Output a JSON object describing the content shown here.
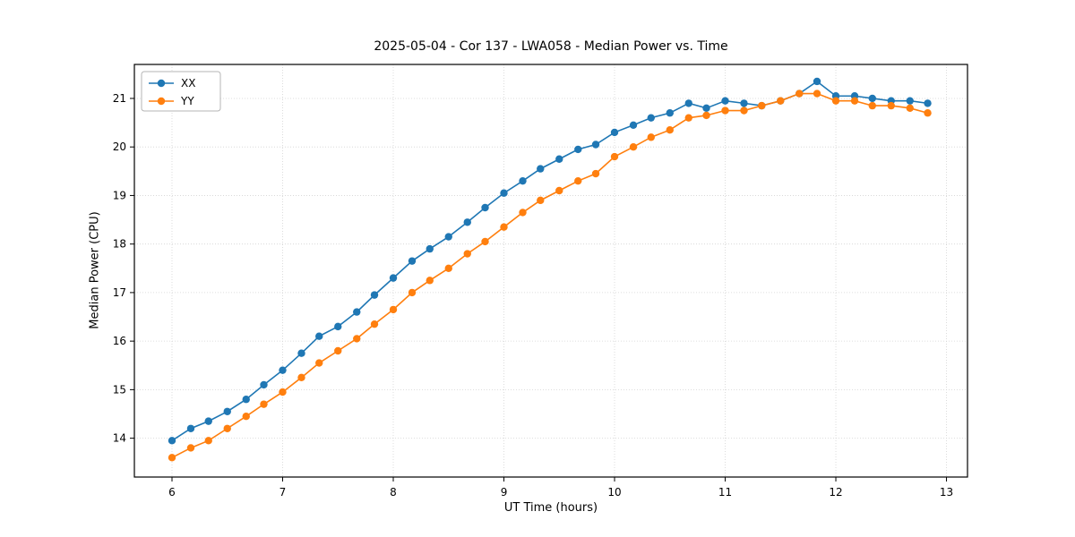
{
  "chart_data": {
    "type": "line",
    "title": "2025-05-04 - Cor 137 - LWA058 - Median Power vs. Time",
    "xlabel": "UT Time (hours)",
    "ylabel": "Median Power (CPU)",
    "xlim": [
      5.66,
      13.19
    ],
    "ylim": [
      13.2,
      21.7
    ],
    "xticks": [
      6,
      7,
      8,
      9,
      10,
      11,
      12,
      13
    ],
    "yticks": [
      14,
      15,
      16,
      17,
      18,
      19,
      20,
      21
    ],
    "grid": true,
    "legend_position": "upper left",
    "marker": "circle",
    "x": [
      6.0,
      6.17,
      6.33,
      6.5,
      6.67,
      6.83,
      7.0,
      7.17,
      7.33,
      7.5,
      7.67,
      7.83,
      8.0,
      8.17,
      8.33,
      8.5,
      8.67,
      8.83,
      9.0,
      9.17,
      9.33,
      9.5,
      9.67,
      9.83,
      10.0,
      10.17,
      10.33,
      10.5,
      10.67,
      10.83,
      11.0,
      11.17,
      11.33,
      11.5,
      11.67,
      11.83,
      12.0,
      12.17,
      12.33,
      12.5,
      12.67,
      12.83
    ],
    "series": [
      {
        "name": "XX",
        "color": "#1f77b4",
        "values": [
          13.95,
          14.2,
          14.35,
          14.55,
          14.8,
          15.1,
          15.4,
          15.75,
          16.1,
          16.3,
          16.6,
          16.95,
          17.3,
          17.65,
          17.9,
          18.15,
          18.45,
          18.75,
          19.05,
          19.3,
          19.55,
          19.75,
          19.95,
          20.05,
          20.3,
          20.45,
          20.6,
          20.7,
          20.9,
          20.8,
          20.95,
          20.9,
          20.85,
          20.95,
          21.1,
          21.35,
          21.05,
          21.05,
          21.0,
          20.95,
          20.95,
          20.9
        ]
      },
      {
        "name": "YY",
        "color": "#ff7f0e",
        "values": [
          13.6,
          13.8,
          13.95,
          14.2,
          14.45,
          14.7,
          14.95,
          15.25,
          15.55,
          15.8,
          16.05,
          16.35,
          16.65,
          17.0,
          17.25,
          17.5,
          17.8,
          18.05,
          18.35,
          18.65,
          18.9,
          19.1,
          19.3,
          19.45,
          19.8,
          20.0,
          20.2,
          20.35,
          20.6,
          20.65,
          20.75,
          20.75,
          20.85,
          20.95,
          21.1,
          21.1,
          20.95,
          20.95,
          20.85,
          20.85,
          20.8,
          20.7
        ]
      }
    ]
  }
}
